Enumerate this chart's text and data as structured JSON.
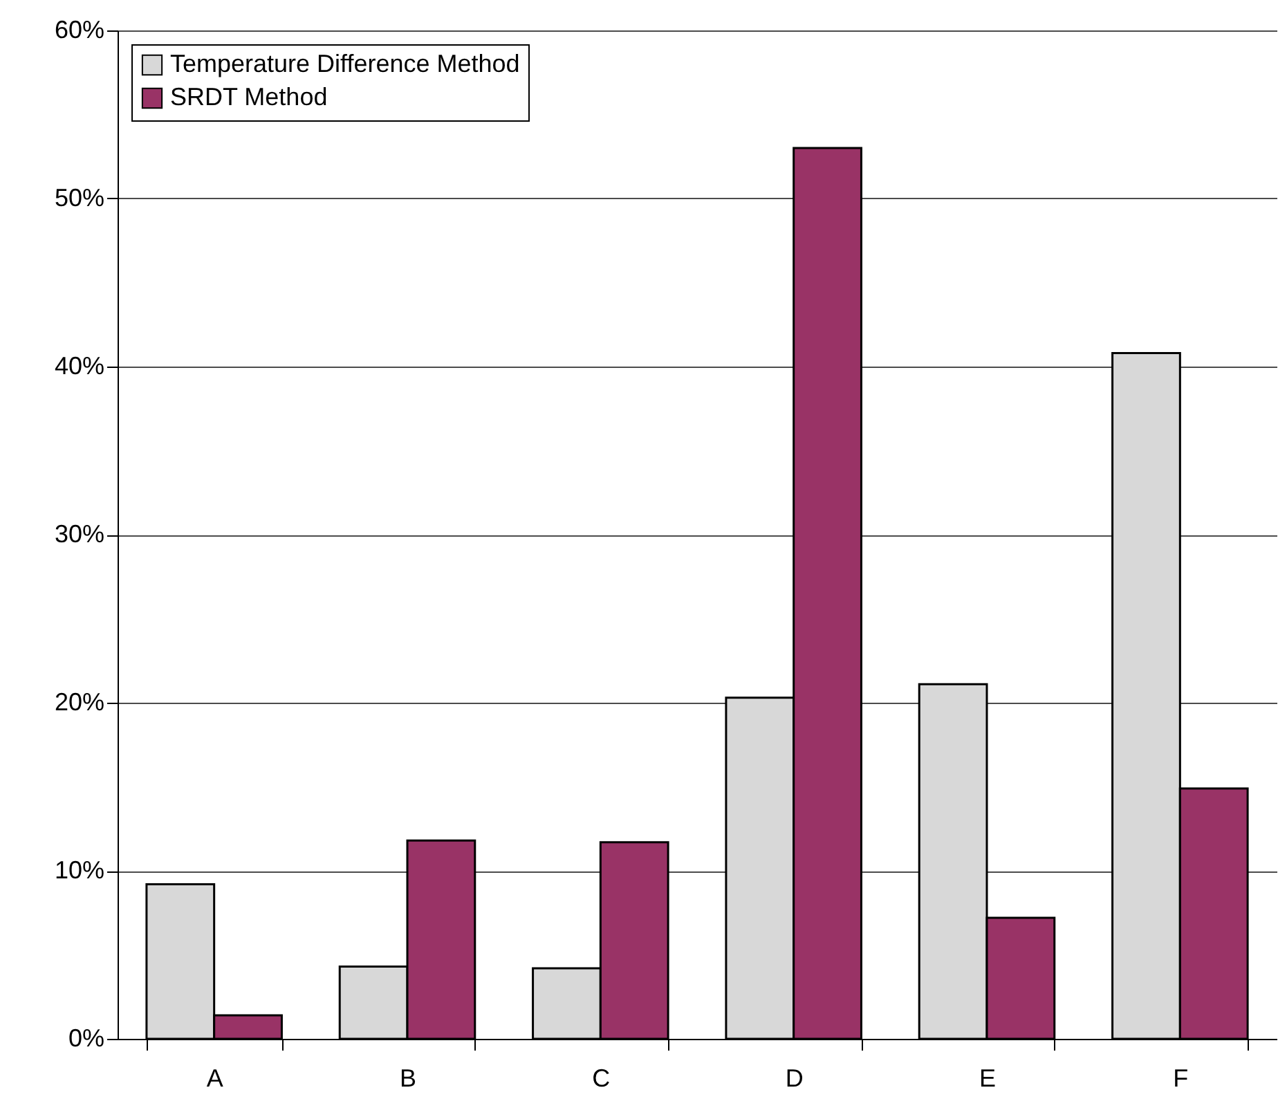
{
  "chart_data": {
    "type": "bar",
    "categories": [
      "A",
      "B",
      "C",
      "D",
      "E",
      "F"
    ],
    "series": [
      {
        "name": "Temperature Difference Method",
        "color": "#d8d8d8",
        "values": [
          9.2,
          4.3,
          4.2,
          20.3,
          21.1,
          40.8
        ]
      },
      {
        "name": "SRDT Method",
        "color": "#993366",
        "values": [
          1.4,
          11.8,
          11.7,
          53,
          7.2,
          14.9
        ]
      }
    ],
    "ylim": [
      0,
      60
    ],
    "yticks": [
      {
        "value": 0,
        "label": "0%"
      },
      {
        "value": 10,
        "label": "10%"
      },
      {
        "value": 20,
        "label": "20%"
      },
      {
        "value": 30,
        "label": "30%"
      },
      {
        "value": 40,
        "label": "40%"
      },
      {
        "value": 50,
        "label": "50%"
      },
      {
        "value": 60,
        "label": "60%"
      }
    ],
    "grid": "y",
    "legend": "top left"
  }
}
